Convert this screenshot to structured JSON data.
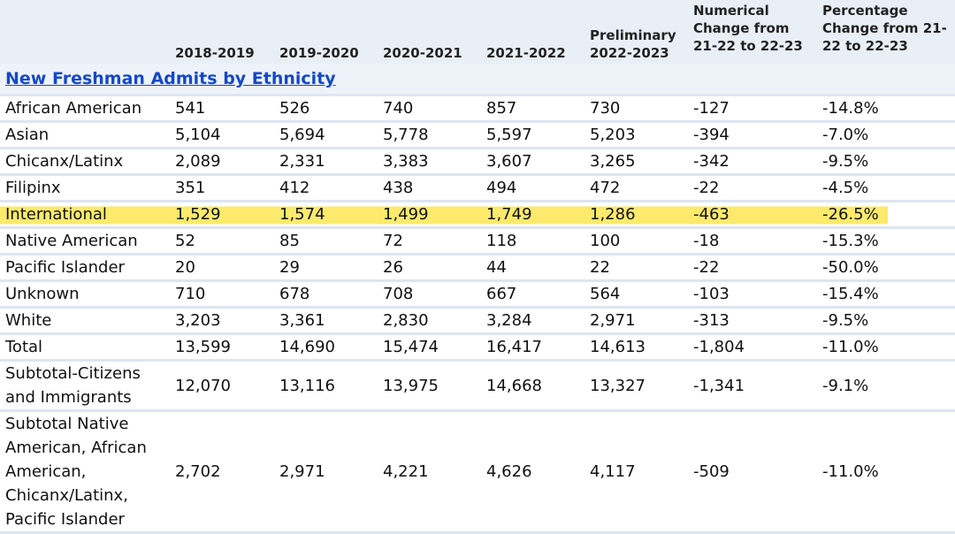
{
  "table": {
    "columns": [
      "2018-2019",
      "2019-2020",
      "2020-2021",
      "2021-2022",
      "Preliminary 2022-2023",
      "Numerical Change from 21-22 to 22-23",
      "Percentage Change from 21-22 to 22-23"
    ],
    "section_title": "New Freshman Admits by Ethnicity",
    "rows": [
      [
        "African American",
        "541",
        "526",
        "740",
        "857",
        "730",
        "-127",
        "-14.8%"
      ],
      [
        "Asian",
        "5,104",
        "5,694",
        "5,778",
        "5,597",
        "5,203",
        "-394",
        "-7.0%"
      ],
      [
        "Chicanx/Latinx",
        "2,089",
        "2,331",
        "3,383",
        "3,607",
        "3,265",
        "-342",
        "-9.5%"
      ],
      [
        "Filipinx",
        "351",
        "412",
        "438",
        "494",
        "472",
        "-22",
        "-4.5%"
      ],
      [
        "International",
        "1,529",
        "1,574",
        "1,499",
        "1,749",
        "1,286",
        "-463",
        "-26.5%"
      ],
      [
        "Native American",
        "52",
        "85",
        "72",
        "118",
        "100",
        "-18",
        "-15.3%"
      ],
      [
        "Pacific Islander",
        "20",
        "29",
        "26",
        "44",
        "22",
        "-22",
        "-50.0%"
      ],
      [
        "Unknown",
        "710",
        "678",
        "708",
        "667",
        "564",
        "-103",
        "-15.4%"
      ],
      [
        "White",
        "3,203",
        "3,361",
        "2,830",
        "3,284",
        "2,971",
        "-313",
        "-9.5%"
      ],
      [
        "Total",
        "13,599",
        "14,690",
        "15,474",
        "16,417",
        "14,613",
        "-1,804",
        "-11.0%"
      ],
      [
        "Subtotal-Citizens and Immigrants",
        "12,070",
        "13,116",
        "13,975",
        "14,668",
        "13,327",
        "-1,341",
        "-9.1%"
      ],
      [
        "Subtotal Native American, African American, Chicanx/Latinx, Pacific Islander",
        "2,702",
        "2,971",
        "4,221",
        "4,626",
        "4,117",
        "-509",
        "-11.0%"
      ]
    ]
  }
}
